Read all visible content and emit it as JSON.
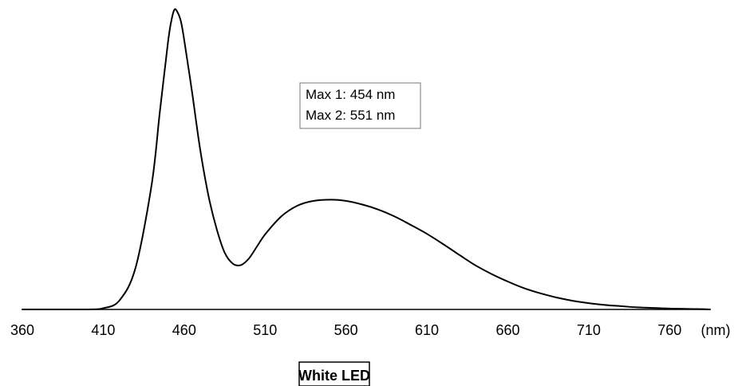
{
  "chart_data": {
    "type": "line",
    "title": "White LED",
    "xlabel": "(nm)",
    "ylabel": "",
    "xlim": [
      360,
      785
    ],
    "ylim": [
      0,
      1.0
    ],
    "x_ticks": [
      "360",
      "410",
      "460",
      "510",
      "560",
      "610",
      "660",
      "710",
      "760"
    ],
    "grid": false,
    "annotations": [
      "Max 1: 454 nm",
      "Max 2: 551 nm"
    ],
    "series": [
      {
        "color": "#000000",
        "x": [
          360,
          400,
          410,
          420,
          430,
          440,
          445,
          450,
          452,
          454,
          456,
          458,
          460,
          465,
          470,
          475,
          480,
          485,
          490,
          495,
          500,
          505,
          510,
          520,
          530,
          540,
          551,
          560,
          570,
          580,
          590,
          600,
          610,
          620,
          630,
          640,
          650,
          660,
          670,
          680,
          690,
          700,
          710,
          720,
          730,
          740,
          750,
          760,
          770,
          780,
          785
        ],
        "y": [
          0,
          0,
          0.004,
          0.03,
          0.14,
          0.42,
          0.66,
          0.89,
          0.96,
          1.0,
          0.99,
          0.96,
          0.9,
          0.72,
          0.53,
          0.38,
          0.27,
          0.19,
          0.153,
          0.148,
          0.17,
          0.21,
          0.25,
          0.31,
          0.346,
          0.362,
          0.366,
          0.362,
          0.35,
          0.333,
          0.31,
          0.282,
          0.252,
          0.218,
          0.182,
          0.147,
          0.118,
          0.093,
          0.071,
          0.054,
          0.04,
          0.029,
          0.021,
          0.015,
          0.011,
          0.007,
          0.005,
          0.003,
          0.002,
          0.001,
          0
        ]
      }
    ]
  }
}
